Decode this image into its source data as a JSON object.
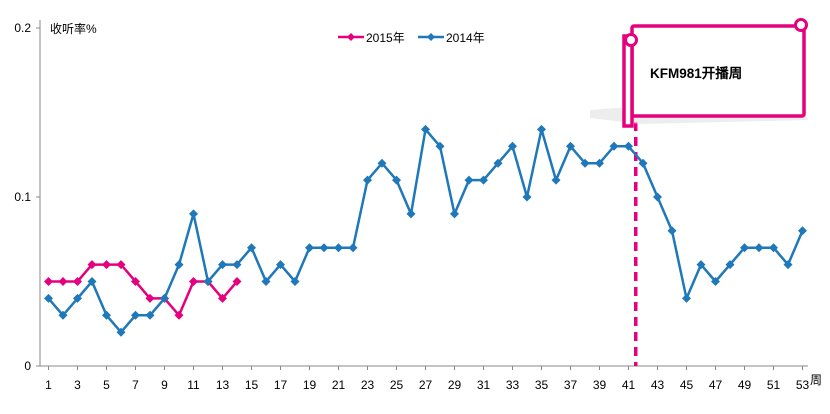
{
  "chart_data": {
    "type": "line",
    "ylabel": "收听率%",
    "xlabel": "周",
    "ylim": [
      0,
      0.2
    ],
    "y_ticks": [
      "0",
      "0.1",
      "0.2"
    ],
    "x_tick_labels": [
      "1",
      "3",
      "5",
      "7",
      "9",
      "11",
      "13",
      "15",
      "17",
      "19",
      "21",
      "23",
      "25",
      "27",
      "29",
      "31",
      "33",
      "35",
      "37",
      "39",
      "41",
      "43",
      "45",
      "47",
      "49",
      "51",
      "53"
    ],
    "grid": false,
    "legend_position": "top-center",
    "series": [
      {
        "name": "2015年",
        "color": "#e5007e",
        "x": [
          1,
          2,
          3,
          4,
          5,
          6,
          7,
          8,
          9,
          10,
          11,
          12,
          13,
          14
        ],
        "values": [
          0.05,
          0.05,
          0.05,
          0.06,
          0.06,
          0.06,
          0.05,
          0.04,
          0.04,
          0.03,
          0.05,
          0.05,
          0.04,
          0.05
        ]
      },
      {
        "name": "2014年",
        "color": "#1f78b9",
        "x": [
          1,
          2,
          3,
          4,
          5,
          6,
          7,
          8,
          9,
          10,
          11,
          12,
          13,
          14,
          15,
          16,
          17,
          18,
          19,
          20,
          21,
          22,
          23,
          24,
          25,
          26,
          27,
          28,
          29,
          30,
          31,
          32,
          33,
          34,
          35,
          36,
          37,
          38,
          39,
          40,
          41,
          42,
          43,
          44,
          45,
          46,
          47,
          48,
          49,
          50,
          51,
          52,
          53
        ],
        "values": [
          0.04,
          0.03,
          0.04,
          0.05,
          0.03,
          0.02,
          0.03,
          0.03,
          0.04,
          0.06,
          0.09,
          0.05,
          0.06,
          0.06,
          0.07,
          0.05,
          0.06,
          0.05,
          0.07,
          0.07,
          0.07,
          0.07,
          0.11,
          0.12,
          0.11,
          0.09,
          0.14,
          0.13,
          0.09,
          0.11,
          0.11,
          0.12,
          0.13,
          0.1,
          0.14,
          0.11,
          0.13,
          0.12,
          0.12,
          0.13,
          0.13,
          0.12,
          0.1,
          0.08,
          0.04,
          0.06,
          0.05,
          0.06,
          0.07,
          0.07,
          0.07,
          0.06,
          0.08
        ]
      }
    ],
    "annotation": {
      "text": "KFM981开播周",
      "week": 41.5,
      "color": "#e5007e"
    }
  }
}
